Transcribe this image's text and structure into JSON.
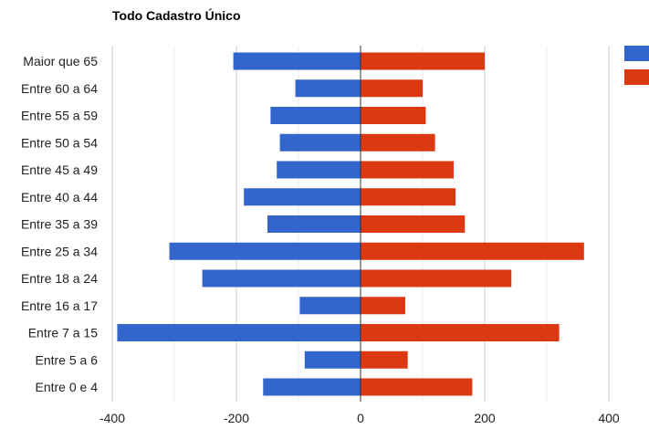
{
  "chart_data": {
    "type": "bar",
    "orientation": "horizontal",
    "title": "Todo Cadastro Único",
    "categories": [
      "Maior que 65",
      "Entre 60 a 64",
      "Entre 55 a 59",
      "Entre 50 a 54",
      "Entre 45 a 49",
      "Entre 40 a 44",
      "Entre 35 a 39",
      "Entre 25 a 34",
      "Entre 18 a 24",
      "Entre 16 a 17",
      "Entre 7 a 15",
      "Entre 5 a 6",
      "Entre 0 e 4"
    ],
    "series": [
      {
        "color": "#3366cc",
        "values": [
          -205,
          -105,
          -145,
          -130,
          -135,
          -188,
          -150,
          -308,
          -255,
          -98,
          -392,
          -90,
          -157
        ]
      },
      {
        "color": "#dc3912",
        "values": [
          200,
          100,
          105,
          120,
          150,
          153,
          168,
          360,
          243,
          72,
          320,
          76,
          180
        ]
      }
    ],
    "xlim": [
      -400,
      400
    ],
    "xticks": [
      -400,
      -200,
      0,
      200,
      400
    ],
    "xtick_labels": [
      "-400",
      "-200",
      "0",
      "200",
      "400"
    ],
    "grid": true,
    "legend": "right"
  }
}
